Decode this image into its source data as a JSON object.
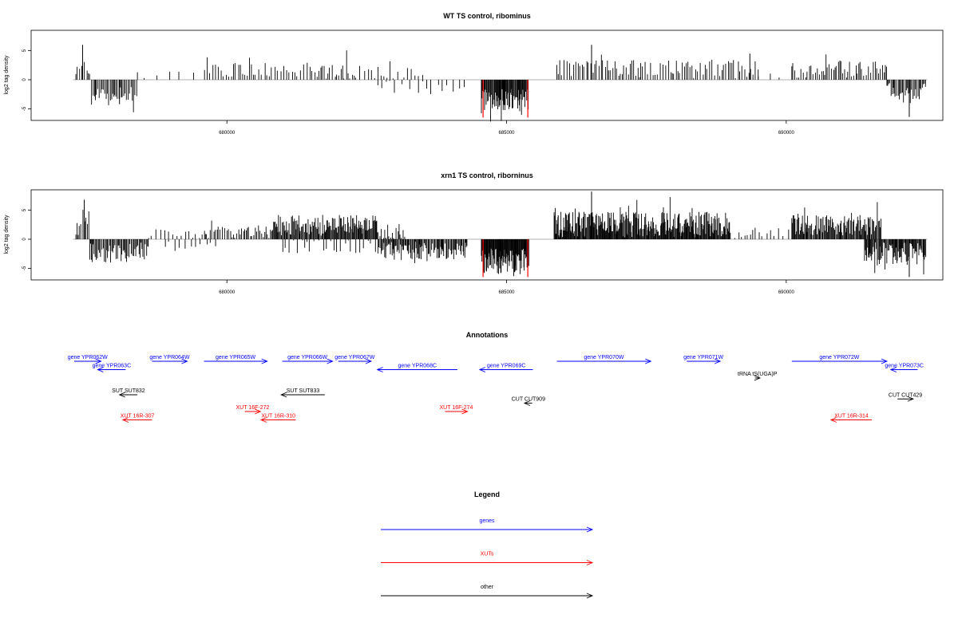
{
  "chart_data": [
    {
      "type": "bar",
      "title": "WT TS control, ribominus",
      "xlabel": "",
      "ylabel": "log2 tag density",
      "xlim": [
        676500,
        692800
      ],
      "ylim": [
        -7,
        8.5
      ],
      "xticks": [
        680000,
        685000,
        690000
      ],
      "xtick_labels": [
        "680000",
        "685000",
        "690000"
      ],
      "yticks": [
        -5,
        0,
        5
      ],
      "ytick_labels": [
        "-5",
        "0",
        "5"
      ],
      "series": [
        {
          "color": "#000000",
          "segments": [
            {
              "start": 677300,
              "end": 677550,
              "sign": 1,
              "base": 1.5,
              "amp": 1.5,
              "spacing": 35,
              "peak": {
                "x": 677420,
                "y": 6
              }
            },
            {
              "start": 677580,
              "end": 678400,
              "sign": -1,
              "base": 2.3,
              "amp": 1.4,
              "spacing": 25,
              "peak": {
                "x": 678080,
                "y": 4.2
              }
            },
            {
              "start": 678400,
              "end": 679600,
              "sign": 1,
              "base": 0.7,
              "amp": 0.6,
              "spacing": 180
            },
            {
              "start": 679600,
              "end": 681700,
              "sign": 1,
              "base": 1.6,
              "amp": 1.2,
              "spacing": 48
            },
            {
              "start": 681700,
              "end": 682300,
              "sign": 1,
              "base": 1.4,
              "amp": 1.8,
              "spacing": 40
            },
            {
              "start": 682300,
              "end": 683500,
              "sign": 1,
              "base": 1.2,
              "amp": 1.1,
              "spacing": 75
            },
            {
              "start": 682700,
              "end": 684300,
              "sign": -1,
              "base": 1.0,
              "amp": 1.5,
              "spacing": 110
            },
            {
              "start": 684550,
              "end": 685400,
              "sign": -1,
              "base": 3.3,
              "amp": 2.0,
              "spacing": 12
            },
            {
              "start": 685900,
              "end": 689500,
              "sign": 1,
              "base": 1.7,
              "amp": 1.6,
              "spacing": 38,
              "peak": {
                "x": 686520,
                "y": 6
              }
            },
            {
              "start": 689500,
              "end": 690000,
              "sign": 1,
              "base": 0.9,
              "amp": 0.6,
              "spacing": 220,
              "peak": {
                "x": 689350,
                "y": 4.5
              }
            },
            {
              "start": 690100,
              "end": 691800,
              "sign": 1,
              "base": 1.7,
              "amp": 1.5,
              "spacing": 32
            },
            {
              "start": 691800,
              "end": 692500,
              "sign": -1,
              "base": 1.8,
              "amp": 1.5,
              "spacing": 22,
              "peak": {
                "x": 692200,
                "y": 6.4
              }
            }
          ]
        },
        {
          "color": "#ff0000",
          "bars": [
            {
              "x": 684580,
              "y": -6.5
            },
            {
              "x": 685380,
              "y": -6.5
            }
          ]
        }
      ],
      "grid": false
    },
    {
      "type": "bar",
      "title": "xrn1 TS control, riborninus",
      "xlabel": "",
      "ylabel": "log2 tag density",
      "xlim": [
        676500,
        692800
      ],
      "ylim": [
        -7,
        8.5
      ],
      "xticks": [
        680000,
        685000,
        690000
      ],
      "xtick_labels": [
        "680000",
        "685000",
        "690000"
      ],
      "yticks": [
        -5,
        0,
        5
      ],
      "ytick_labels": [
        "-5",
        "0",
        "5"
      ],
      "series": [
        {
          "color": "#000000",
          "segments": [
            {
              "start": 677300,
              "end": 677550,
              "sign": 1,
              "base": 1.8,
              "amp": 1.8,
              "spacing": 30,
              "peak": {
                "x": 677450,
                "y": 6.8
              }
            },
            {
              "start": 677550,
              "end": 678600,
              "sign": -1,
              "base": 2.2,
              "amp": 1.8,
              "spacing": 18
            },
            {
              "start": 678600,
              "end": 679600,
              "sign": 1,
              "base": 0.7,
              "amp": 0.9,
              "spacing": 60
            },
            {
              "start": 678900,
              "end": 679900,
              "sign": -1,
              "base": 0.8,
              "amp": 0.8,
              "spacing": 90
            },
            {
              "start": 679600,
              "end": 680800,
              "sign": 1,
              "base": 1.1,
              "amp": 1.0,
              "spacing": 30
            },
            {
              "start": 680800,
              "end": 682700,
              "sign": 1,
              "base": 2.2,
              "amp": 1.8,
              "spacing": 14
            },
            {
              "start": 681000,
              "end": 682700,
              "sign": -1,
              "base": 1.2,
              "amp": 1.5,
              "spacing": 70
            },
            {
              "start": 682700,
              "end": 683200,
              "sign": 1,
              "base": 1.2,
              "amp": 1.4,
              "spacing": 30
            },
            {
              "start": 682700,
              "end": 684300,
              "sign": -1,
              "base": 1.8,
              "amp": 1.6,
              "spacing": 16
            },
            {
              "start": 684550,
              "end": 685400,
              "sign": -1,
              "base": 3.6,
              "amp": 2.2,
              "spacing": 9
            },
            {
              "start": 685850,
              "end": 689000,
              "sign": 1,
              "base": 2.3,
              "amp": 2.2,
              "spacing": 11,
              "peak": {
                "x": 686520,
                "y": 8.2
              }
            },
            {
              "start": 689000,
              "end": 690100,
              "sign": 1,
              "base": 1.0,
              "amp": 0.9,
              "spacing": 70
            },
            {
              "start": 690100,
              "end": 691700,
              "sign": 1,
              "base": 2.2,
              "amp": 1.8,
              "spacing": 14
            },
            {
              "start": 691400,
              "end": 692500,
              "sign": -1,
              "base": 2.3,
              "amp": 2.0,
              "spacing": 13,
              "peak": {
                "x": 692200,
                "y": 6.5
              }
            }
          ]
        },
        {
          "color": "#ff0000",
          "bars": [
            {
              "x": 684580,
              "y": -6.5
            },
            {
              "x": 685380,
              "y": -6.5
            }
          ]
        }
      ],
      "grid": false
    }
  ],
  "annotations": {
    "title": "Annotations",
    "colors": {
      "gene": "#0000ff",
      "xut": "#ff0000",
      "other": "#000000"
    },
    "items": [
      {
        "label": "gene YPR062W",
        "kind": "gene",
        "row": 0,
        "start": 677270,
        "end": 677750,
        "dir": 1
      },
      {
        "label": "gene YPR063C",
        "kind": "gene",
        "row": 1,
        "start": 677690,
        "end": 678190,
        "dir": -1
      },
      {
        "label": "gene YPR064W",
        "kind": "gene",
        "row": 0,
        "start": 678660,
        "end": 679290,
        "dir": 1
      },
      {
        "label": "gene YPR065W",
        "kind": "gene",
        "row": 0,
        "start": 679590,
        "end": 680720,
        "dir": 1
      },
      {
        "label": "gene YPR066W",
        "kind": "gene",
        "row": 0,
        "start": 680990,
        "end": 681890,
        "dir": 1
      },
      {
        "label": "gene YPR067W",
        "kind": "gene",
        "row": 0,
        "start": 681990,
        "end": 682580,
        "dir": 1
      },
      {
        "label": "gene YPR068C",
        "kind": "gene",
        "row": 1,
        "start": 682690,
        "end": 684120,
        "dir": -1
      },
      {
        "label": "gene YPR069C",
        "kind": "gene",
        "row": 1,
        "start": 684520,
        "end": 685470,
        "dir": -1
      },
      {
        "label": "gene YPR070W",
        "kind": "gene",
        "row": 0,
        "start": 685900,
        "end": 687580,
        "dir": 1
      },
      {
        "label": "gene YPR071W",
        "kind": "gene",
        "row": 0,
        "start": 688220,
        "end": 688820,
        "dir": 1
      },
      {
        "label": "tRNA tS(UGA)P",
        "kind": "other",
        "row": 2,
        "start": 689440,
        "end": 689530,
        "dir": 1
      },
      {
        "label": "gene YPR072W",
        "kind": "gene",
        "row": 0,
        "start": 690100,
        "end": 691800,
        "dir": 1
      },
      {
        "label": "gene YPR073C",
        "kind": "gene",
        "row": 1,
        "start": 691870,
        "end": 692350,
        "dir": -1
      },
      {
        "label": "SUT SUT832",
        "kind": "other",
        "row": 4,
        "start": 678080,
        "end": 678400,
        "dir": -1
      },
      {
        "label": "SUT SUT833",
        "kind": "other",
        "row": 4,
        "start": 680970,
        "end": 681750,
        "dir": -1
      },
      {
        "label": "CUT CUT909",
        "kind": "other",
        "row": 5,
        "start": 685320,
        "end": 685460,
        "dir": -1
      },
      {
        "label": "CUT CUT429",
        "kind": "other",
        "row": 4.5,
        "start": 691990,
        "end": 692270,
        "dir": 1
      },
      {
        "label": "XUT 16F-272",
        "kind": "xut",
        "row": 6,
        "start": 680320,
        "end": 680600,
        "dir": 1
      },
      {
        "label": "XUT 16R-307",
        "kind": "xut",
        "row": 7,
        "start": 678140,
        "end": 678660,
        "dir": -1
      },
      {
        "label": "XUT 16R-310",
        "kind": "xut",
        "row": 7,
        "start": 680610,
        "end": 681230,
        "dir": -1
      },
      {
        "label": "XUT 16F-274",
        "kind": "xut",
        "row": 6,
        "start": 683900,
        "end": 684300,
        "dir": 1
      },
      {
        "label": "XUT 16R-314",
        "kind": "xut",
        "row": 7,
        "start": 690800,
        "end": 691530,
        "dir": -1
      }
    ]
  },
  "legend": {
    "title": "Legend",
    "entries": [
      {
        "label": "genes",
        "color": "#0000ff"
      },
      {
        "label": "XUTs",
        "color": "#ff0000"
      },
      {
        "label": "other",
        "color": "#000000"
      }
    ]
  }
}
